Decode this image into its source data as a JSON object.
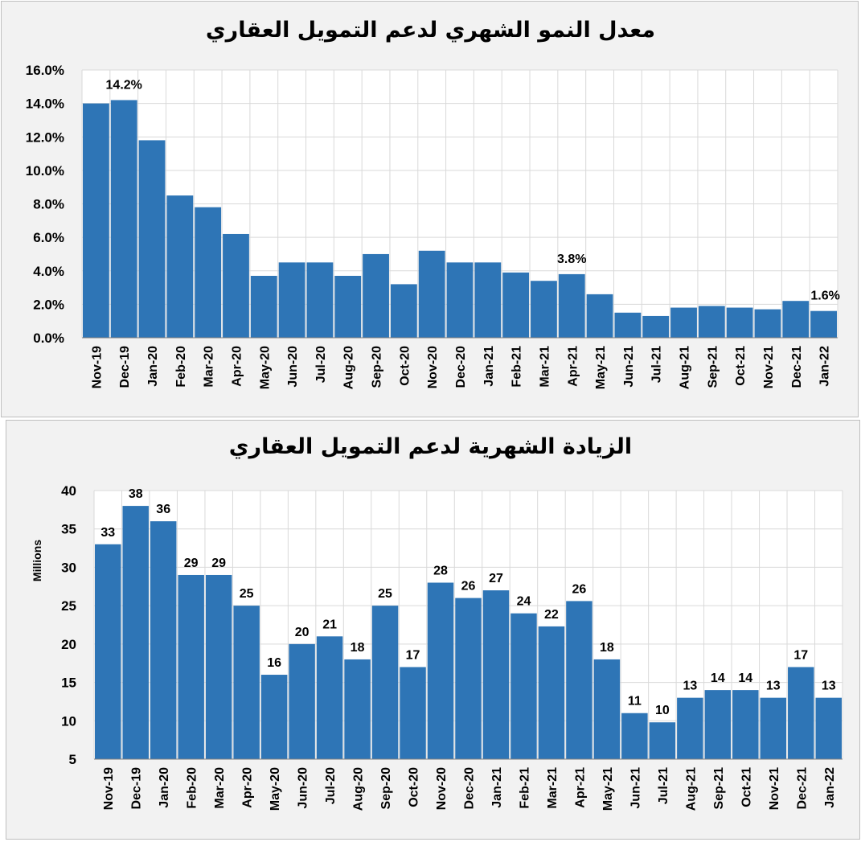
{
  "chart_data": [
    {
      "type": "bar",
      "title": "معدل النمو الشهري لدعم التمويل العقاري",
      "categories": [
        "Nov-19",
        "Dec-19",
        "Jan-20",
        "Feb-20",
        "Mar-20",
        "Apr-20",
        "May-20",
        "Jun-20",
        "Jul-20",
        "Aug-20",
        "Sep-20",
        "Oct-20",
        "Nov-20",
        "Dec-20",
        "Jan-21",
        "Feb-21",
        "Mar-21",
        "Apr-21",
        "May-21",
        "Jun-21",
        "Jul-21",
        "Aug-21",
        "Sep-21",
        "Oct-21",
        "Nov-21",
        "Dec-21",
        "Jan-22"
      ],
      "values": [
        14.0,
        14.2,
        11.8,
        8.5,
        7.8,
        6.2,
        3.7,
        4.5,
        4.5,
        3.7,
        5.0,
        3.2,
        5.2,
        4.5,
        4.5,
        3.9,
        3.4,
        3.8,
        2.6,
        1.5,
        1.3,
        1.8,
        1.9,
        1.8,
        1.7,
        2.2,
        1.6
      ],
      "ylim": [
        0,
        16
      ],
      "yticks": [
        "0.0%",
        "2.0%",
        "4.0%",
        "6.0%",
        "8.0%",
        "10.0%",
        "12.0%",
        "14.0%",
        "16.0%"
      ],
      "data_labels": [
        {
          "index": 1,
          "text": "14.2%"
        },
        {
          "index": 17,
          "text": "3.8%"
        },
        {
          "index": 26,
          "text": "1.6%"
        }
      ],
      "ylabel": "",
      "xlabel": "",
      "color": "#2e75b6",
      "grid": true
    },
    {
      "type": "bar",
      "title": "الزيادة الشهرية لدعم التمويل العقاري",
      "categories": [
        "Nov-19",
        "Dec-19",
        "Jan-20",
        "Feb-20",
        "Mar-20",
        "Apr-20",
        "May-20",
        "Jun-20",
        "Jul-20",
        "Aug-20",
        "Sep-20",
        "Oct-20",
        "Nov-20",
        "Dec-20",
        "Jan-21",
        "Feb-21",
        "Mar-21",
        "Apr-21",
        "May-21",
        "Jun-21",
        "Jul-21",
        "Aug-21",
        "Sep-21",
        "Oct-21",
        "Nov-21",
        "Dec-21",
        "Jan-22"
      ],
      "values": [
        33,
        38,
        36,
        29,
        29,
        25,
        16,
        20,
        21,
        18,
        25,
        17,
        28,
        26,
        27,
        24,
        22.3,
        25.6,
        18,
        11,
        9.8,
        13,
        14,
        14,
        13,
        17,
        13
      ],
      "labels": [
        "33",
        "38",
        "36",
        "29",
        "29",
        "25",
        "16",
        "20",
        "21",
        "18",
        "25",
        "17",
        "28",
        "26",
        "27",
        "24",
        "22",
        "26",
        "18",
        "11",
        "10",
        "13",
        "14",
        "14",
        "13",
        "17",
        "13"
      ],
      "ylim": [
        5,
        40
      ],
      "yticks": [
        "5",
        "10",
        "15",
        "20",
        "25",
        "30",
        "35",
        "40"
      ],
      "ylabel": "Millions",
      "xlabel": "",
      "color": "#2e75b6",
      "grid": true
    }
  ]
}
